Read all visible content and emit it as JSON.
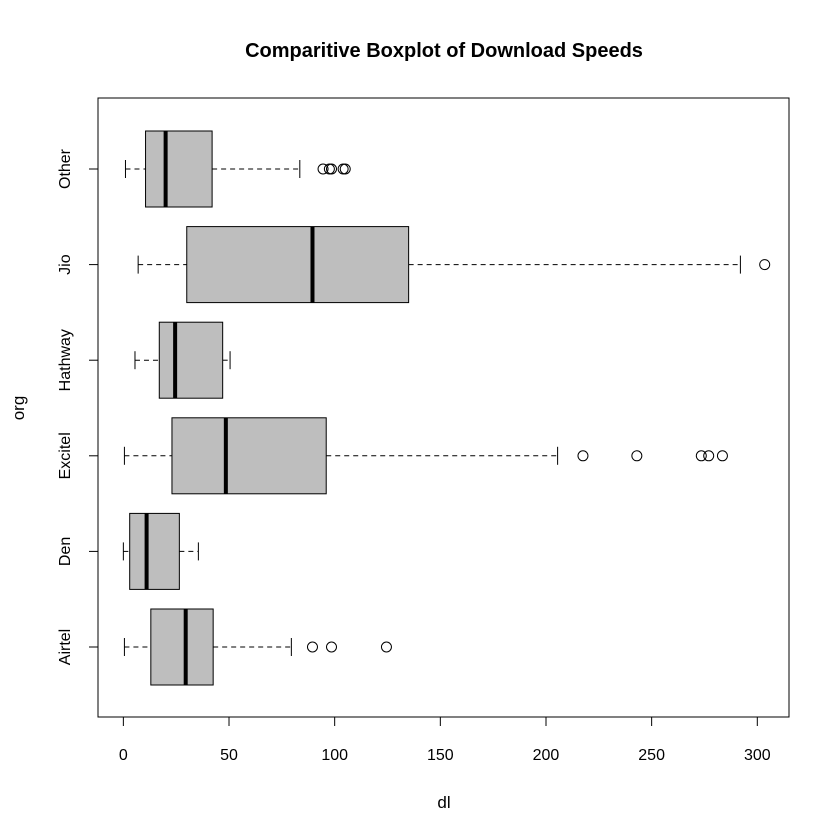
{
  "chart_data": {
    "type": "boxplot",
    "orientation": "horizontal",
    "title": "Comparitive Boxplot of Download Speeds",
    "xlabel": "dl",
    "ylabel": "org",
    "xlim": [
      -12,
      315
    ],
    "xticks": [
      0,
      50,
      100,
      150,
      200,
      250,
      300
    ],
    "categories": [
      "Airtel",
      "Den",
      "Excitel",
      "Hathway",
      "Jio",
      "Other"
    ],
    "box_fill": "#bebebe",
    "grid": false,
    "boxes": [
      {
        "category": "Airtel",
        "whisker_low": 0.5,
        "q1": 13,
        "median": 29.5,
        "q3": 42.5,
        "whisker_high": 79.5,
        "outliers": [
          89.5,
          98.5,
          124.5
        ]
      },
      {
        "category": "Den",
        "whisker_low": 0,
        "q1": 3,
        "median": 11,
        "q3": 26.5,
        "whisker_high": 35.5,
        "outliers": []
      },
      {
        "category": "Excitel",
        "whisker_low": 0.5,
        "q1": 23,
        "median": 48.5,
        "q3": 96,
        "whisker_high": 205.5,
        "outliers": [
          217.5,
          243,
          273.5,
          277,
          283.5
        ]
      },
      {
        "category": "Hathway",
        "whisker_low": 5.5,
        "q1": 17,
        "median": 24.5,
        "q3": 47,
        "whisker_high": 50.5,
        "outliers": []
      },
      {
        "category": "Jio",
        "whisker_low": 7,
        "q1": 30,
        "median": 89.5,
        "q3": 135,
        "whisker_high": 292,
        "outliers": [
          303.5
        ]
      },
      {
        "category": "Other",
        "whisker_low": 1,
        "q1": 10.5,
        "median": 20,
        "q3": 42,
        "whisker_high": 83.5,
        "outliers": [
          94.5,
          97.5,
          98.5,
          104,
          105
        ]
      }
    ]
  }
}
